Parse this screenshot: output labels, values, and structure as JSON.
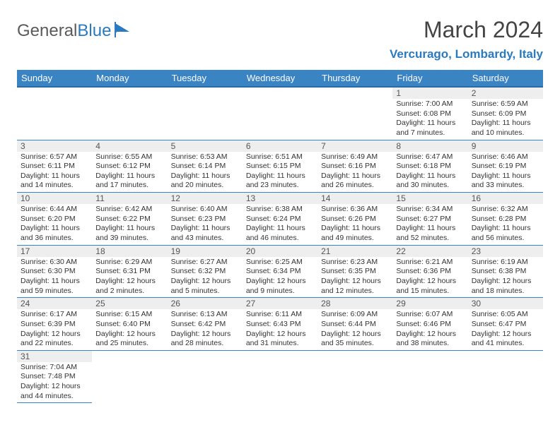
{
  "logo": {
    "text1": "General",
    "text2": "Blue"
  },
  "header": {
    "month_title": "March 2024",
    "location": "Vercurago, Lombardy, Italy"
  },
  "colors": {
    "brand_blue": "#3b84c4",
    "accent_blue": "#2a7ac0",
    "header_border": "#2a6aa5",
    "day_num_bg": "#eeeeee",
    "text": "#333333"
  },
  "weekdays": [
    "Sunday",
    "Monday",
    "Tuesday",
    "Wednesday",
    "Thursday",
    "Friday",
    "Saturday"
  ],
  "weeks": [
    [
      null,
      null,
      null,
      null,
      null,
      {
        "n": "1",
        "sr": "Sunrise: 7:00 AM",
        "ss": "Sunset: 6:08 PM",
        "dl": "Daylight: 11 hours and 7 minutes."
      },
      {
        "n": "2",
        "sr": "Sunrise: 6:59 AM",
        "ss": "Sunset: 6:09 PM",
        "dl": "Daylight: 11 hours and 10 minutes."
      }
    ],
    [
      {
        "n": "3",
        "sr": "Sunrise: 6:57 AM",
        "ss": "Sunset: 6:11 PM",
        "dl": "Daylight: 11 hours and 14 minutes."
      },
      {
        "n": "4",
        "sr": "Sunrise: 6:55 AM",
        "ss": "Sunset: 6:12 PM",
        "dl": "Daylight: 11 hours and 17 minutes."
      },
      {
        "n": "5",
        "sr": "Sunrise: 6:53 AM",
        "ss": "Sunset: 6:14 PM",
        "dl": "Daylight: 11 hours and 20 minutes."
      },
      {
        "n": "6",
        "sr": "Sunrise: 6:51 AM",
        "ss": "Sunset: 6:15 PM",
        "dl": "Daylight: 11 hours and 23 minutes."
      },
      {
        "n": "7",
        "sr": "Sunrise: 6:49 AM",
        "ss": "Sunset: 6:16 PM",
        "dl": "Daylight: 11 hours and 26 minutes."
      },
      {
        "n": "8",
        "sr": "Sunrise: 6:47 AM",
        "ss": "Sunset: 6:18 PM",
        "dl": "Daylight: 11 hours and 30 minutes."
      },
      {
        "n": "9",
        "sr": "Sunrise: 6:46 AM",
        "ss": "Sunset: 6:19 PM",
        "dl": "Daylight: 11 hours and 33 minutes."
      }
    ],
    [
      {
        "n": "10",
        "sr": "Sunrise: 6:44 AM",
        "ss": "Sunset: 6:20 PM",
        "dl": "Daylight: 11 hours and 36 minutes."
      },
      {
        "n": "11",
        "sr": "Sunrise: 6:42 AM",
        "ss": "Sunset: 6:22 PM",
        "dl": "Daylight: 11 hours and 39 minutes."
      },
      {
        "n": "12",
        "sr": "Sunrise: 6:40 AM",
        "ss": "Sunset: 6:23 PM",
        "dl": "Daylight: 11 hours and 43 minutes."
      },
      {
        "n": "13",
        "sr": "Sunrise: 6:38 AM",
        "ss": "Sunset: 6:24 PM",
        "dl": "Daylight: 11 hours and 46 minutes."
      },
      {
        "n": "14",
        "sr": "Sunrise: 6:36 AM",
        "ss": "Sunset: 6:26 PM",
        "dl": "Daylight: 11 hours and 49 minutes."
      },
      {
        "n": "15",
        "sr": "Sunrise: 6:34 AM",
        "ss": "Sunset: 6:27 PM",
        "dl": "Daylight: 11 hours and 52 minutes."
      },
      {
        "n": "16",
        "sr": "Sunrise: 6:32 AM",
        "ss": "Sunset: 6:28 PM",
        "dl": "Daylight: 11 hours and 56 minutes."
      }
    ],
    [
      {
        "n": "17",
        "sr": "Sunrise: 6:30 AM",
        "ss": "Sunset: 6:30 PM",
        "dl": "Daylight: 11 hours and 59 minutes."
      },
      {
        "n": "18",
        "sr": "Sunrise: 6:29 AM",
        "ss": "Sunset: 6:31 PM",
        "dl": "Daylight: 12 hours and 2 minutes."
      },
      {
        "n": "19",
        "sr": "Sunrise: 6:27 AM",
        "ss": "Sunset: 6:32 PM",
        "dl": "Daylight: 12 hours and 5 minutes."
      },
      {
        "n": "20",
        "sr": "Sunrise: 6:25 AM",
        "ss": "Sunset: 6:34 PM",
        "dl": "Daylight: 12 hours and 9 minutes."
      },
      {
        "n": "21",
        "sr": "Sunrise: 6:23 AM",
        "ss": "Sunset: 6:35 PM",
        "dl": "Daylight: 12 hours and 12 minutes."
      },
      {
        "n": "22",
        "sr": "Sunrise: 6:21 AM",
        "ss": "Sunset: 6:36 PM",
        "dl": "Daylight: 12 hours and 15 minutes."
      },
      {
        "n": "23",
        "sr": "Sunrise: 6:19 AM",
        "ss": "Sunset: 6:38 PM",
        "dl": "Daylight: 12 hours and 18 minutes."
      }
    ],
    [
      {
        "n": "24",
        "sr": "Sunrise: 6:17 AM",
        "ss": "Sunset: 6:39 PM",
        "dl": "Daylight: 12 hours and 22 minutes."
      },
      {
        "n": "25",
        "sr": "Sunrise: 6:15 AM",
        "ss": "Sunset: 6:40 PM",
        "dl": "Daylight: 12 hours and 25 minutes."
      },
      {
        "n": "26",
        "sr": "Sunrise: 6:13 AM",
        "ss": "Sunset: 6:42 PM",
        "dl": "Daylight: 12 hours and 28 minutes."
      },
      {
        "n": "27",
        "sr": "Sunrise: 6:11 AM",
        "ss": "Sunset: 6:43 PM",
        "dl": "Daylight: 12 hours and 31 minutes."
      },
      {
        "n": "28",
        "sr": "Sunrise: 6:09 AM",
        "ss": "Sunset: 6:44 PM",
        "dl": "Daylight: 12 hours and 35 minutes."
      },
      {
        "n": "29",
        "sr": "Sunrise: 6:07 AM",
        "ss": "Sunset: 6:46 PM",
        "dl": "Daylight: 12 hours and 38 minutes."
      },
      {
        "n": "30",
        "sr": "Sunrise: 6:05 AM",
        "ss": "Sunset: 6:47 PM",
        "dl": "Daylight: 12 hours and 41 minutes."
      }
    ],
    [
      {
        "n": "31",
        "sr": "Sunrise: 7:04 AM",
        "ss": "Sunset: 7:48 PM",
        "dl": "Daylight: 12 hours and 44 minutes."
      },
      null,
      null,
      null,
      null,
      null,
      null
    ]
  ]
}
